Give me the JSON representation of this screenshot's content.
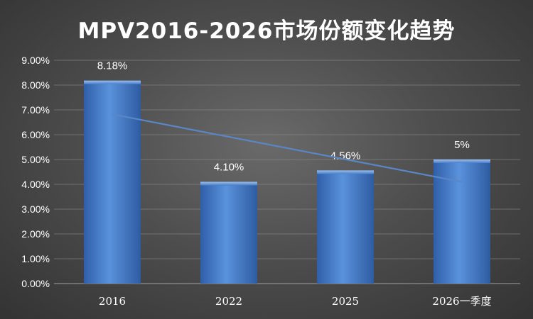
{
  "chart_data": {
    "type": "bar",
    "title": "MPV2016-2026市场份额变化趋势",
    "categories": [
      "2016",
      "2022",
      "2025",
      "2026一季度"
    ],
    "values": [
      8.18,
      4.1,
      4.56,
      5.0
    ],
    "data_labels": [
      "8.18%",
      "4.10%",
      "4.56%",
      "5%"
    ],
    "y_ticks": [
      "0.00%",
      "1.00%",
      "2.00%",
      "3.00%",
      "4.00%",
      "5.00%",
      "6.00%",
      "7.00%",
      "8.00%",
      "9.00%"
    ],
    "ylim": [
      0,
      9
    ],
    "grid": true,
    "legend": false,
    "trendline": {
      "type": "linear"
    },
    "colors": {
      "bar": "#4a7ec8",
      "trend": "#5b86c6",
      "text": "#ffffff",
      "grid": "#8a8a8a"
    }
  }
}
